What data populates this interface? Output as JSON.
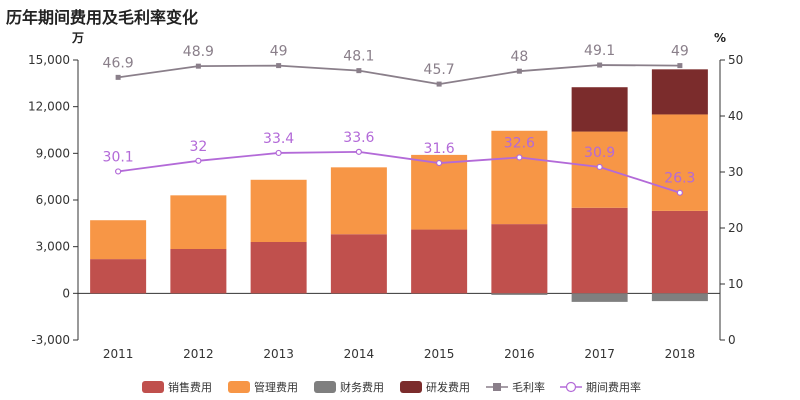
{
  "title": "历年期间费用及毛利率变化",
  "chart_data": {
    "type": "bar",
    "stacked": true,
    "categories": [
      "2011",
      "2012",
      "2013",
      "2014",
      "2015",
      "2016",
      "2017",
      "2018"
    ],
    "left_axis": {
      "unit": "万",
      "min": -3000,
      "max": 15000,
      "ticks": [
        -3000,
        0,
        3000,
        6000,
        9000,
        12000,
        15000
      ],
      "tick_labels": [
        "-3,000",
        "0",
        "3,000",
        "6,000",
        "9,000",
        "12,000",
        "15,000"
      ]
    },
    "right_axis": {
      "unit": "%",
      "min": 0,
      "max": 50,
      "ticks": [
        0,
        10,
        20,
        30,
        40,
        50
      ],
      "tick_labels": [
        "0",
        "10",
        "20",
        "30",
        "40",
        "50"
      ]
    },
    "series": [
      {
        "name": "销售费用",
        "kind": "bar",
        "color": "#c0504d",
        "values": [
          2200,
          2850,
          3300,
          3800,
          4100,
          4450,
          5500,
          5300
        ]
      },
      {
        "name": "管理费用",
        "kind": "bar",
        "color": "#f79646",
        "values": [
          2500,
          3450,
          4000,
          4300,
          4800,
          6000,
          4900,
          6200
        ]
      },
      {
        "name": "财务费用",
        "kind": "bar",
        "color": "#7f7f7f",
        "values": [
          0,
          0,
          0,
          0,
          0,
          -100,
          -550,
          -500
        ]
      },
      {
        "name": "研发费用",
        "kind": "bar",
        "color": "#7b2c2c",
        "values": [
          0,
          0,
          0,
          0,
          0,
          0,
          2850,
          2900
        ]
      },
      {
        "name": "毛利率",
        "kind": "line",
        "axis": "right",
        "color": "#8a7f8a",
        "marker": "square",
        "values": [
          46.9,
          48.9,
          49,
          48.1,
          45.7,
          48,
          49.1,
          49
        ],
        "labels": [
          "46.9",
          "48.9",
          "49",
          "48.1",
          "45.7",
          "48",
          "49.1",
          "49"
        ]
      },
      {
        "name": "期间费用率",
        "kind": "line",
        "axis": "right",
        "color": "#b36ad8",
        "marker": "circle",
        "values": [
          30.1,
          32,
          33.4,
          33.6,
          31.6,
          32.6,
          30.9,
          26.3
        ],
        "labels": [
          "30.1",
          "32",
          "33.4",
          "33.6",
          "31.6",
          "32.6",
          "30.9",
          "26.3"
        ]
      }
    ],
    "legend": {
      "position": "bottom"
    },
    "grid": false
  }
}
